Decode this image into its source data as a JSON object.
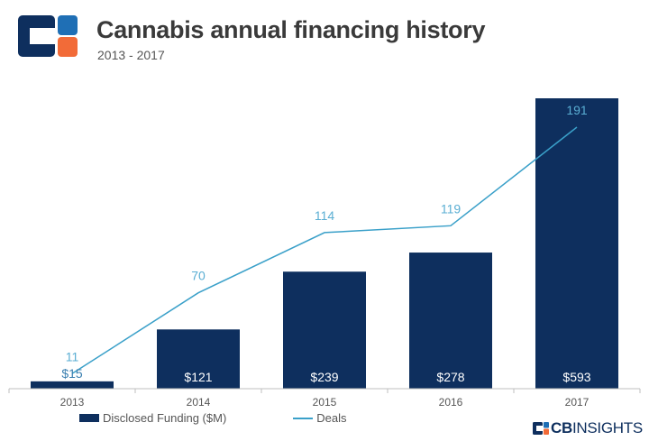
{
  "header": {
    "title": "Cannabis annual financing history",
    "subtitle": "2013 - 2017"
  },
  "colors": {
    "bar": "#0e2f5e",
    "line": "#3aa0c9",
    "logo_dark": "#0e2f5e",
    "logo_orange": "#f26b38",
    "logo_blue": "#1f6fb5"
  },
  "chart_data": {
    "type": "bar",
    "categories": [
      "2013",
      "2014",
      "2015",
      "2016",
      "2017"
    ],
    "series": [
      {
        "name": "Disclosed Funding ($M)",
        "type": "bar",
        "values": [
          15,
          121,
          239,
          278,
          593
        ],
        "labels": [
          "$15",
          "$121",
          "$239",
          "$278",
          "$593"
        ]
      },
      {
        "name": "Deals",
        "type": "line",
        "values": [
          11,
          70,
          114,
          119,
          191
        ],
        "labels": [
          "11",
          "70",
          "114",
          "119",
          "191"
        ]
      }
    ],
    "ylim_funding": [
      0,
      600
    ],
    "ylim_deals": [
      0,
      312
    ],
    "grid": false,
    "legend_position": "bottom-left"
  },
  "legend": {
    "funding": "Disclosed Funding ($M)",
    "deals": "Deals"
  },
  "brand": {
    "cb": "CB",
    "insights": "INSIGHTS"
  }
}
